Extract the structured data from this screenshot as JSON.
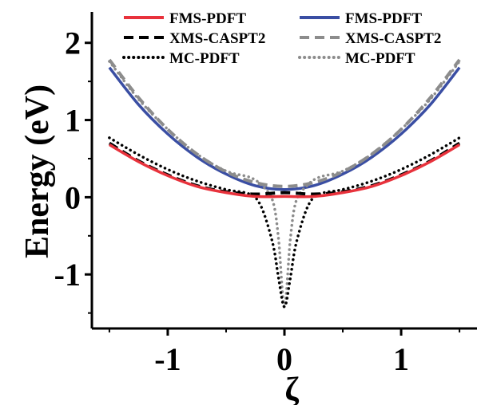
{
  "chart_data": {
    "type": "line",
    "title": "",
    "xlabel": "ζ",
    "ylabel": "Energy (eV)",
    "xlim": [
      -1.65,
      1.65
    ],
    "ylim": [
      -1.7,
      2.4
    ],
    "xticks": [
      -1,
      0,
      1
    ],
    "yticks": [
      -1,
      0,
      1,
      2
    ],
    "xtick_labels": [
      "-1",
      "0",
      "1"
    ],
    "ytick_labels": [
      "-1",
      "0",
      "1",
      "2"
    ],
    "grid": false,
    "legend_position": "top",
    "series": [
      {
        "name": "FMS-PDFT",
        "color": "#e8323c",
        "style": "solid",
        "x": [
          -1.5,
          -1.25,
          -1.0,
          -0.75,
          -0.5,
          -0.25,
          0,
          0.25,
          0.5,
          0.75,
          1.0,
          1.25,
          1.5
        ],
        "y": [
          0.68,
          0.46,
          0.28,
          0.14,
          0.06,
          0.01,
          0.01,
          0.01,
          0.06,
          0.14,
          0.28,
          0.46,
          0.68
        ]
      },
      {
        "name": "XMS-CASPT2",
        "color": "#000000",
        "style": "dashed",
        "x": [
          -1.5,
          -1.25,
          -1.0,
          -0.75,
          -0.5,
          -0.25,
          0,
          0.25,
          0.5,
          0.75,
          1.0,
          1.25,
          1.5
        ],
        "y": [
          0.7,
          0.47,
          0.29,
          0.15,
          0.07,
          0.04,
          0.06,
          0.04,
          0.07,
          0.15,
          0.29,
          0.47,
          0.7
        ]
      },
      {
        "name": "MC-PDFT",
        "color": "#000000",
        "style": "dotted",
        "x": [
          -1.5,
          -1.25,
          -1.0,
          -0.75,
          -0.5,
          -0.3,
          -0.2,
          -0.1,
          -0.05,
          0,
          0.05,
          0.1,
          0.2,
          0.3,
          0.5,
          0.75,
          1.0,
          1.25,
          1.5
        ],
        "y": [
          0.77,
          0.55,
          0.36,
          0.21,
          0.1,
          0.04,
          -0.12,
          -0.6,
          -1.05,
          -1.42,
          -1.05,
          -0.6,
          -0.12,
          0.04,
          0.1,
          0.21,
          0.36,
          0.55,
          0.77
        ]
      },
      {
        "name": "FMS-PDFT",
        "color": "#3a4ea3",
        "style": "solid",
        "x": [
          -1.5,
          -1.25,
          -1.0,
          -0.75,
          -0.5,
          -0.25,
          0,
          0.25,
          0.5,
          0.75,
          1.0,
          1.25,
          1.5
        ],
        "y": [
          1.68,
          1.2,
          0.82,
          0.52,
          0.3,
          0.15,
          0.1,
          0.15,
          0.3,
          0.52,
          0.82,
          1.2,
          1.68
        ]
      },
      {
        "name": "XMS-CASPT2",
        "color": "#8c8c8c",
        "style": "dashed",
        "x": [
          -1.5,
          -1.25,
          -1.0,
          -0.75,
          -0.5,
          -0.25,
          0,
          0.25,
          0.5,
          0.75,
          1.0,
          1.25,
          1.5
        ],
        "y": [
          1.78,
          1.29,
          0.88,
          0.56,
          0.33,
          0.19,
          0.14,
          0.19,
          0.33,
          0.56,
          0.88,
          1.29,
          1.78
        ]
      },
      {
        "name": "MC-PDFT",
        "color": "#8c8c8c",
        "style": "dotted",
        "x": [
          -1.5,
          -1.25,
          -1.0,
          -0.75,
          -0.5,
          -0.3,
          -0.2,
          -0.1,
          -0.05,
          0,
          0.05,
          0.1,
          0.2,
          0.3,
          0.5,
          0.75,
          1.0,
          1.25,
          1.5
        ],
        "y": [
          1.76,
          1.27,
          0.88,
          0.56,
          0.34,
          0.26,
          0.16,
          -0.05,
          -0.55,
          -1.42,
          -0.55,
          -0.05,
          0.16,
          0.26,
          0.34,
          0.56,
          0.88,
          1.27,
          1.76
        ]
      }
    ]
  }
}
